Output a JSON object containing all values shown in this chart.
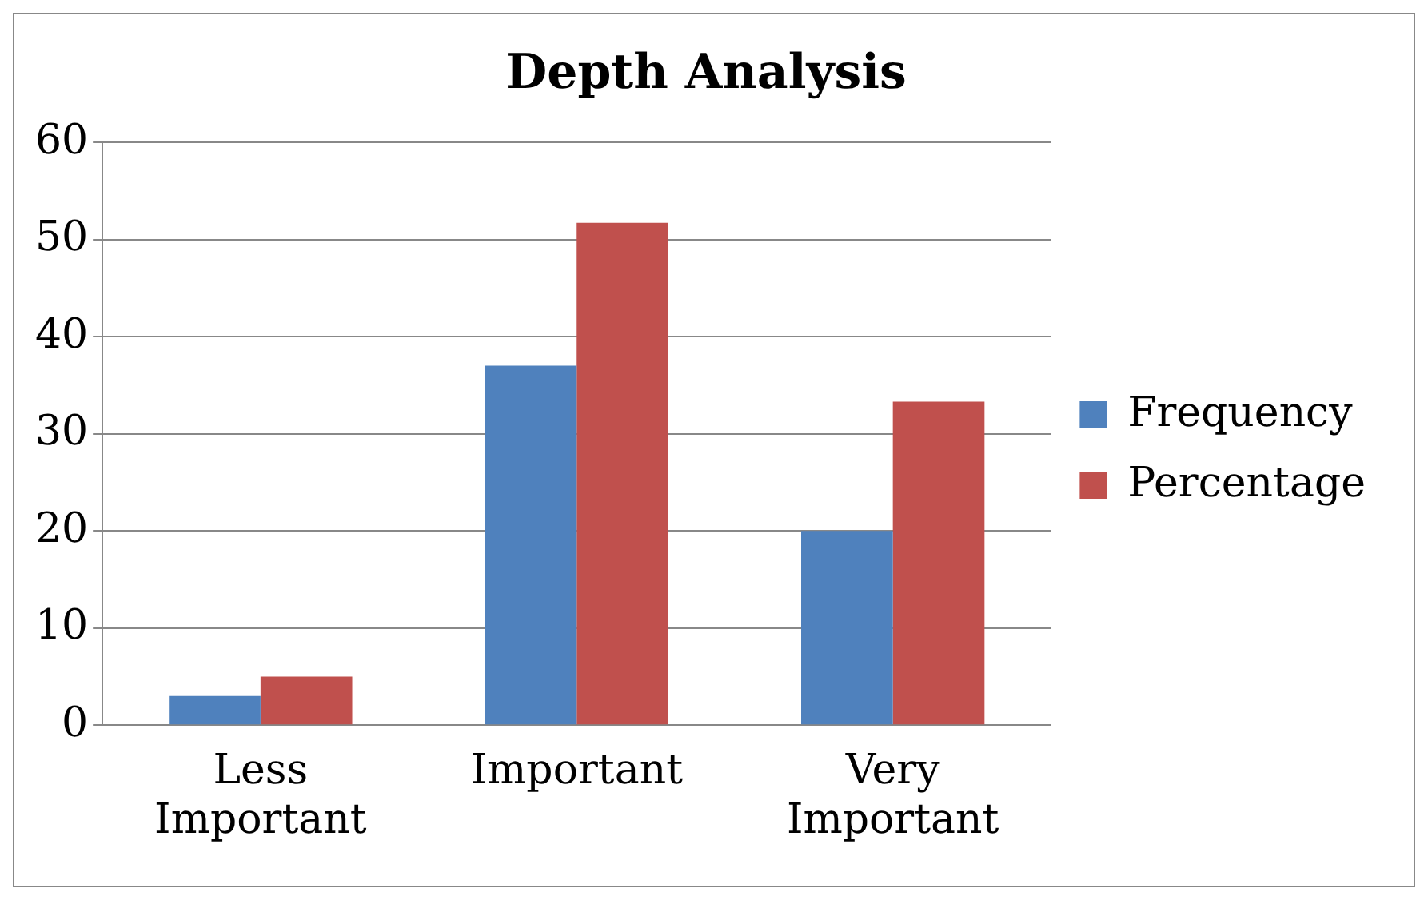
{
  "chart_data": {
    "type": "bar",
    "title": "Depth Analysis",
    "categories": [
      "Less Important",
      "Important",
      "Very Important"
    ],
    "series": [
      {
        "name": "Frequency",
        "color": "#4f81bd",
        "values": [
          3,
          37,
          20
        ]
      },
      {
        "name": "Percentage",
        "color": "#c0504d",
        "values": [
          5,
          51.7,
          33.3
        ]
      }
    ],
    "ylim": [
      0,
      60
    ],
    "yticks": [
      0,
      10,
      20,
      30,
      40,
      50,
      60
    ],
    "grid": "y",
    "legend": "right"
  }
}
